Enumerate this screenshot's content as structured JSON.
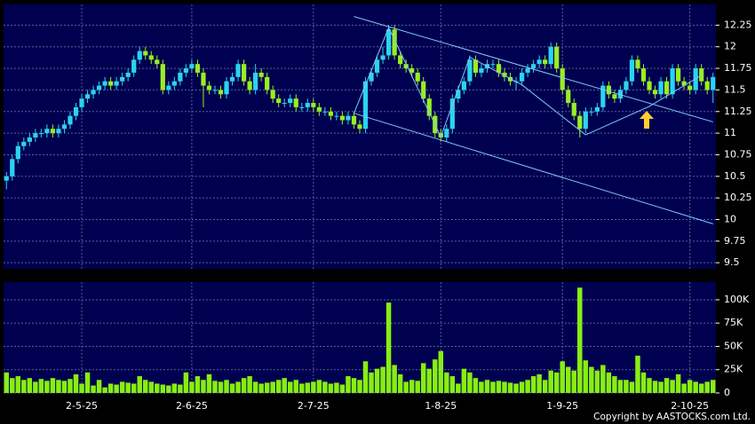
{
  "chart_data": [
    {
      "type": "candlestick",
      "categories": [
        null,
        null,
        null,
        null,
        null,
        null,
        null,
        null,
        null,
        null,
        null,
        null,
        null,
        "2-5-25",
        null,
        null,
        null,
        null,
        null,
        null,
        null,
        null,
        null,
        null,
        null,
        null,
        null,
        null,
        null,
        null,
        null,
        null,
        "2-6-25",
        null,
        null,
        null,
        null,
        null,
        null,
        null,
        null,
        null,
        null,
        null,
        null,
        null,
        null,
        null,
        null,
        null,
        null,
        null,
        null,
        "2-7-25",
        null,
        null,
        null,
        null,
        null,
        null,
        null,
        null,
        null,
        null,
        null,
        null,
        null,
        null,
        null,
        null,
        null,
        null,
        null,
        null,
        null,
        "1-8-25",
        null,
        null,
        null,
        null,
        null,
        null,
        null,
        null,
        null,
        null,
        null,
        null,
        null,
        null,
        null,
        null,
        null,
        null,
        null,
        null,
        "1-9-25",
        null,
        null,
        null,
        null,
        null,
        null,
        null,
        null,
        null,
        null,
        null,
        null,
        null,
        null,
        null,
        null,
        null,
        null,
        null,
        null,
        null,
        "2-10-25",
        null,
        null,
        null,
        null
      ],
      "open": [
        10.45,
        10.5,
        10.7,
        10.85,
        10.9,
        10.95,
        11.0,
        11.0,
        11.05,
        11.0,
        11.05,
        11.1,
        11.2,
        11.3,
        11.4,
        11.45,
        11.5,
        11.55,
        11.6,
        11.55,
        11.6,
        11.65,
        11.7,
        11.85,
        11.95,
        11.9,
        11.85,
        11.8,
        11.5,
        11.55,
        11.6,
        11.7,
        11.75,
        11.8,
        11.7,
        11.55,
        11.5,
        11.5,
        11.45,
        11.6,
        11.65,
        11.8,
        11.6,
        11.5,
        11.7,
        11.65,
        11.5,
        11.4,
        11.35,
        11.35,
        11.4,
        11.3,
        11.3,
        11.35,
        11.3,
        11.25,
        11.25,
        11.2,
        11.2,
        11.15,
        11.2,
        11.1,
        11.05,
        11.6,
        11.7,
        11.85,
        11.9,
        12.2,
        11.9,
        11.8,
        11.75,
        11.7,
        11.6,
        11.4,
        11.2,
        11.0,
        10.95,
        11.05,
        11.4,
        11.5,
        11.6,
        11.85,
        11.7,
        11.75,
        11.8,
        11.8,
        11.7,
        11.65,
        11.6,
        11.6,
        11.7,
        11.75,
        11.8,
        11.85,
        11.8,
        12.0,
        11.75,
        11.5,
        11.35,
        11.2,
        11.05,
        11.25,
        11.25,
        11.3,
        11.55,
        11.45,
        11.4,
        11.5,
        11.6,
        11.85,
        11.75,
        11.6,
        11.5,
        11.45,
        11.6,
        11.45,
        11.75,
        11.6,
        11.55,
        11.5,
        11.75,
        11.6,
        11.5
      ],
      "high": [
        10.55,
        10.75,
        10.9,
        10.95,
        11.0,
        11.05,
        11.05,
        11.1,
        11.1,
        11.1,
        11.15,
        11.25,
        11.35,
        11.45,
        11.5,
        11.55,
        11.6,
        11.65,
        11.65,
        11.65,
        11.7,
        11.75,
        11.9,
        12.0,
        12.0,
        11.95,
        11.9,
        11.85,
        11.6,
        11.65,
        11.75,
        11.8,
        11.85,
        11.85,
        11.75,
        11.6,
        11.55,
        11.55,
        11.65,
        11.7,
        11.85,
        11.85,
        11.65,
        11.8,
        11.75,
        11.7,
        11.55,
        11.45,
        11.4,
        11.45,
        11.45,
        11.35,
        11.4,
        11.4,
        11.35,
        11.3,
        11.3,
        11.25,
        11.25,
        11.25,
        11.25,
        11.15,
        11.65,
        11.75,
        11.9,
        12.0,
        12.25,
        12.25,
        11.95,
        11.85,
        11.8,
        11.75,
        11.65,
        11.45,
        11.25,
        11.05,
        11.1,
        11.45,
        11.55,
        11.65,
        11.9,
        11.9,
        11.8,
        11.85,
        11.85,
        11.85,
        11.75,
        11.7,
        11.65,
        11.75,
        11.8,
        11.85,
        11.9,
        11.9,
        12.05,
        12.05,
        11.8,
        11.55,
        11.4,
        11.25,
        11.3,
        11.3,
        11.35,
        11.6,
        11.6,
        11.5,
        11.55,
        11.65,
        11.9,
        11.9,
        11.8,
        11.65,
        11.55,
        11.65,
        11.65,
        11.8,
        11.8,
        11.65,
        11.6,
        11.8,
        11.8,
        11.65,
        11.7
      ],
      "low": [
        10.35,
        10.45,
        10.65,
        10.8,
        10.85,
        10.9,
        10.95,
        10.95,
        10.95,
        10.95,
        11.0,
        11.05,
        11.15,
        11.25,
        11.35,
        11.4,
        11.45,
        11.5,
        11.5,
        11.5,
        11.55,
        11.6,
        11.65,
        11.8,
        11.85,
        11.8,
        11.75,
        11.45,
        11.45,
        11.5,
        11.55,
        11.65,
        11.7,
        11.65,
        11.3,
        11.45,
        11.45,
        11.4,
        11.4,
        11.55,
        11.6,
        11.55,
        11.45,
        11.45,
        11.6,
        11.45,
        11.35,
        11.3,
        11.3,
        11.3,
        11.25,
        11.25,
        11.25,
        11.25,
        11.2,
        11.2,
        11.15,
        11.15,
        11.1,
        11.1,
        11.05,
        11.0,
        11.0,
        11.55,
        11.65,
        11.8,
        11.85,
        11.85,
        11.75,
        11.7,
        11.65,
        11.55,
        11.35,
        11.15,
        10.95,
        10.9,
        10.9,
        11.0,
        11.35,
        11.45,
        11.55,
        11.65,
        11.65,
        11.7,
        11.75,
        11.65,
        11.6,
        11.55,
        11.5,
        11.55,
        11.65,
        11.7,
        11.75,
        11.75,
        11.75,
        11.7,
        11.45,
        11.3,
        11.15,
        10.95,
        11.0,
        11.2,
        11.2,
        11.25,
        11.4,
        11.35,
        11.35,
        11.45,
        11.55,
        11.7,
        11.55,
        11.45,
        11.4,
        11.4,
        11.4,
        11.4,
        11.55,
        11.5,
        11.45,
        11.45,
        11.55,
        11.45,
        11.35
      ],
      "close": [
        10.5,
        10.7,
        10.85,
        10.9,
        10.95,
        11.0,
        11.0,
        11.05,
        11.0,
        11.05,
        11.1,
        11.2,
        11.3,
        11.4,
        11.45,
        11.5,
        11.55,
        11.6,
        11.55,
        11.6,
        11.65,
        11.7,
        11.85,
        11.95,
        11.9,
        11.85,
        11.8,
        11.5,
        11.55,
        11.6,
        11.7,
        11.75,
        11.8,
        11.7,
        11.55,
        11.5,
        11.5,
        11.45,
        11.6,
        11.65,
        11.8,
        11.6,
        11.5,
        11.7,
        11.65,
        11.5,
        11.4,
        11.35,
        11.35,
        11.4,
        11.3,
        11.3,
        11.35,
        11.3,
        11.25,
        11.25,
        11.2,
        11.2,
        11.15,
        11.2,
        11.1,
        11.05,
        11.6,
        11.7,
        11.85,
        11.9,
        12.2,
        11.9,
        11.8,
        11.75,
        11.7,
        11.6,
        11.4,
        11.2,
        11.0,
        10.95,
        11.05,
        11.4,
        11.5,
        11.6,
        11.85,
        11.7,
        11.75,
        11.8,
        11.8,
        11.7,
        11.65,
        11.6,
        11.6,
        11.7,
        11.75,
        11.8,
        11.85,
        11.8,
        12.0,
        11.75,
        11.5,
        11.35,
        11.2,
        11.05,
        11.25,
        11.25,
        11.3,
        11.55,
        11.45,
        11.4,
        11.5,
        11.6,
        11.85,
        11.75,
        11.6,
        11.5,
        11.45,
        11.6,
        11.45,
        11.75,
        11.6,
        11.55,
        11.5,
        11.75,
        11.6,
        11.5,
        11.65
      ],
      "up_color": "#2ad4f0",
      "down_color": "#99ee22",
      "ylim": [
        9.43,
        12.49
      ],
      "yticks": [
        9.5,
        9.75,
        10,
        10.25,
        10.5,
        10.75,
        11,
        11.25,
        11.5,
        11.75,
        12,
        12.25
      ],
      "grid": true,
      "trendlines": [
        {
          "x": [
            60,
            122
          ],
          "y": [
            12.35,
            11.13
          ]
        },
        {
          "x": [
            60,
            122
          ],
          "y": [
            11.23,
            9.95
          ]
        },
        {
          "x": [
            60,
            66,
            75,
            80,
            89,
            100,
            111,
            120
          ],
          "y": [
            11.23,
            12.22,
            10.96,
            11.88,
            11.56,
            10.98,
            11.31,
            11.67
          ]
        }
      ],
      "trendline_color": "#7fc8f8"
    },
    {
      "type": "bar",
      "values": [
        22000,
        16000,
        18000,
        14000,
        16000,
        12000,
        15000,
        13000,
        16000,
        14000,
        13000,
        15000,
        20000,
        10000,
        22000,
        8000,
        14000,
        6000,
        10000,
        9000,
        12000,
        11000,
        10000,
        18000,
        14000,
        12000,
        10000,
        9000,
        8000,
        10000,
        9000,
        22000,
        12000,
        18000,
        14000,
        20000,
        13000,
        12000,
        14000,
        10000,
        12000,
        16000,
        18000,
        12000,
        10000,
        11000,
        12000,
        14000,
        16000,
        12000,
        14000,
        10000,
        11000,
        12000,
        14000,
        12000,
        10000,
        11000,
        9000,
        18000,
        16000,
        14000,
        34000,
        22000,
        26000,
        28000,
        97000,
        30000,
        20000,
        12000,
        14000,
        13000,
        32000,
        26000,
        36000,
        45000,
        22000,
        18000,
        10000,
        26000,
        22000,
        16000,
        12000,
        14000,
        12000,
        13000,
        12000,
        11000,
        10000,
        12000,
        14000,
        18000,
        20000,
        14000,
        24000,
        22000,
        34000,
        28000,
        24000,
        113000,
        35000,
        28000,
        24000,
        30000,
        22000,
        18000,
        14000,
        14000,
        12000,
        40000,
        22000,
        16000,
        13000,
        12000,
        16000,
        14000,
        20000,
        10000,
        14000,
        12000,
        10000,
        12000,
        14000
      ],
      "color": "#88ee11",
      "ylim": [
        0,
        119000
      ],
      "yticks": [
        0,
        {
          "value": 25000,
          "label": "25K"
        },
        {
          "value": 50000,
          "label": "50K"
        },
        {
          "value": 75000,
          "label": "75K"
        },
        {
          "value": 100000,
          "label": "100K"
        }
      ],
      "grid": true
    }
  ],
  "copyright": "Copyright by AASTOCKS.com Ltd."
}
